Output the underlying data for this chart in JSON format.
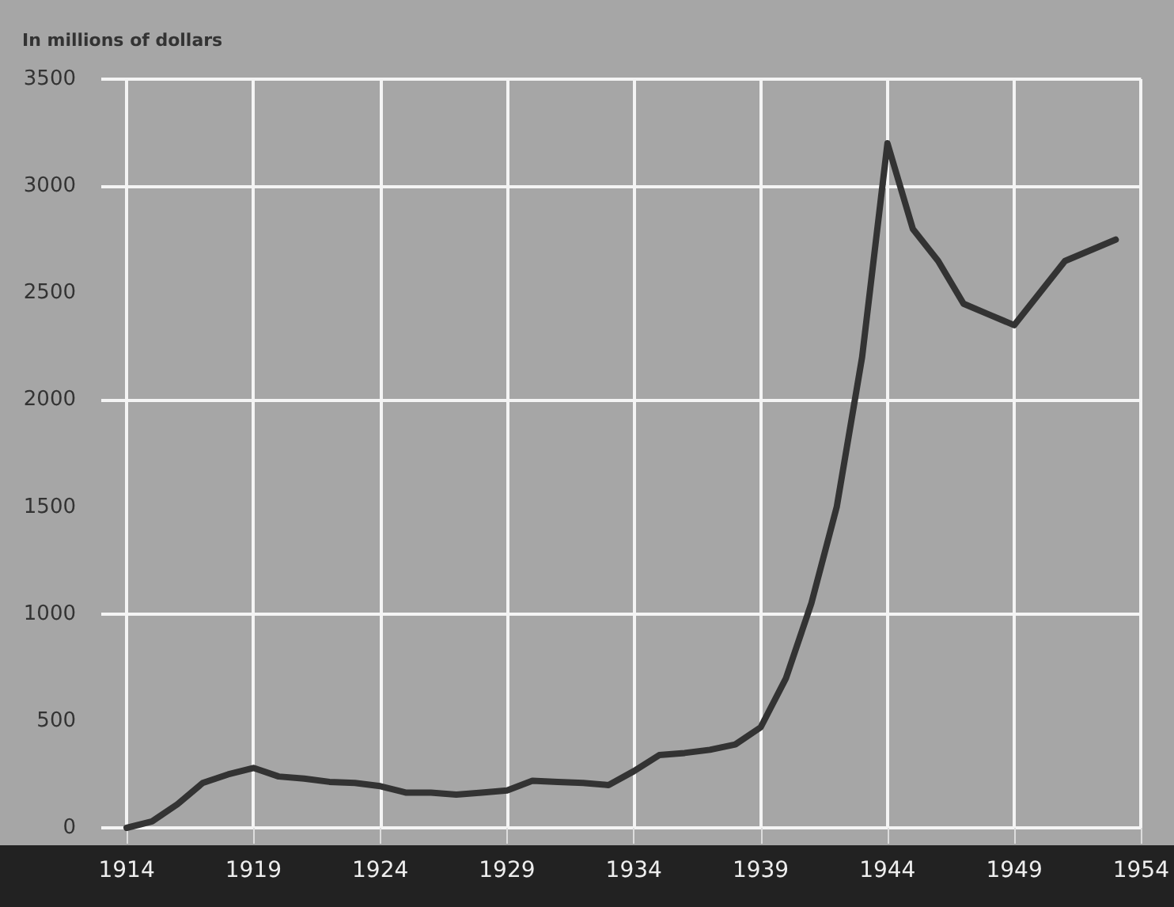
{
  "chart_data": {
    "type": "line",
    "ylabel": "In millions of dollars",
    "x": [
      1914,
      1915,
      1916,
      1917,
      1918,
      1919,
      1920,
      1921,
      1922,
      1923,
      1924,
      1925,
      1926,
      1927,
      1928,
      1929,
      1930,
      1931,
      1932,
      1933,
      1934,
      1935,
      1936,
      1937,
      1938,
      1939,
      1940,
      1941,
      1942,
      1943,
      1944,
      1945,
      1946,
      1947,
      1948,
      1949,
      1950,
      1951,
      1952,
      1953
    ],
    "series": [
      {
        "color": "#333333",
        "values": [
          0,
          30,
          110,
          210,
          250,
          280,
          240,
          230,
          215,
          210,
          195,
          165,
          165,
          155,
          165,
          175,
          220,
          215,
          210,
          200,
          265,
          340,
          350,
          365,
          390,
          470,
          700,
          1050,
          1500,
          2200,
          3200,
          2800,
          2650,
          2450,
          2400,
          2350,
          2500,
          2650,
          2700,
          2750
        ]
      }
    ],
    "xlim": [
      1913,
      1954
    ],
    "xticks": [
      1914,
      1919,
      1924,
      1929,
      1934,
      1939,
      1944,
      1949,
      1954
    ],
    "ylim": [
      0,
      3500
    ],
    "yticks": [
      0,
      500,
      1000,
      1500,
      2000,
      2500,
      3000,
      3500
    ],
    "grid": true,
    "marker": "none",
    "line_style": "solid"
  }
}
